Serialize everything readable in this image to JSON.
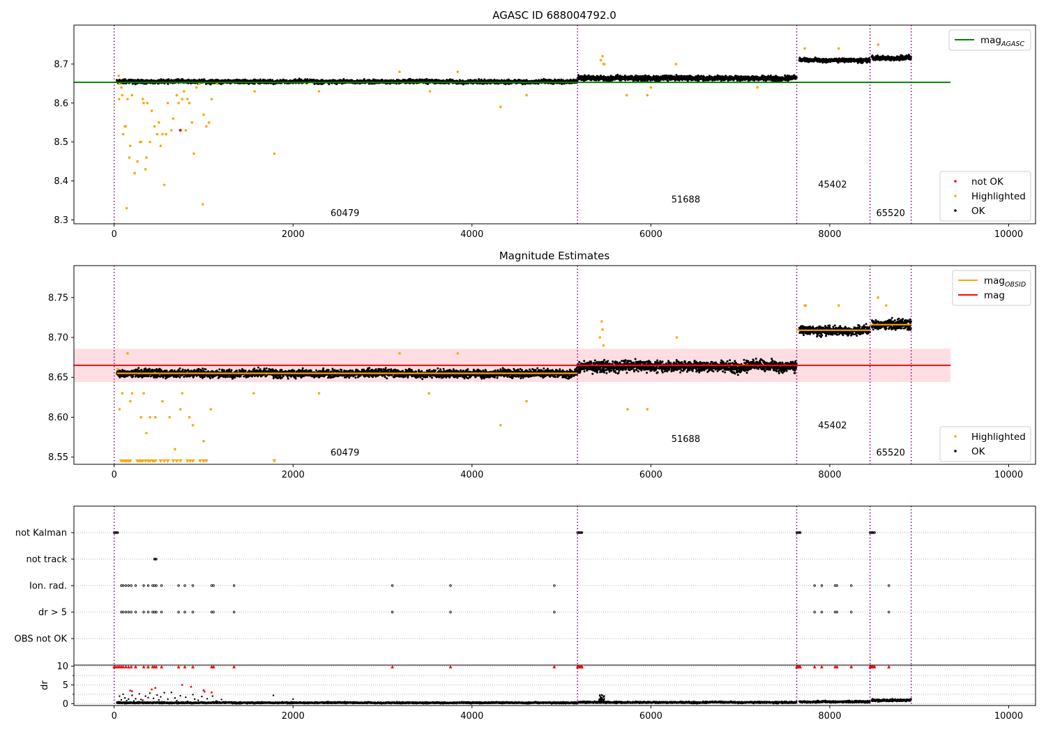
{
  "figure": {
    "colors": {
      "ok": "#000000",
      "highlighted": "#ffa500",
      "not_ok": "#ff0000",
      "agasc_line": "#008000",
      "obsid_line": "#ffa500",
      "mag_line": "#ff0000",
      "band": "#ffb6c1",
      "epoch_line": "#800080"
    }
  },
  "chart_data": [
    {
      "type": "scatter",
      "title": "AGASC ID 688004792.0",
      "xlim": [
        -450,
        10300
      ],
      "ylim": [
        8.29,
        8.8
      ],
      "xticks": [
        "0",
        "2000",
        "4000",
        "6000",
        "8000",
        "10000"
      ],
      "yticks": [
        "8.3",
        "8.4",
        "8.5",
        "8.6",
        "8.7"
      ],
      "epoch_boundaries": [
        0,
        5180,
        7630,
        8450,
        8910
      ],
      "obsid_labels": [
        {
          "text": "60479",
          "x": 2580,
          "y": 8.31
        },
        {
          "text": "51688",
          "x": 6390,
          "y": 8.345
        },
        {
          "text": "45402",
          "x": 8030,
          "y": 8.383
        },
        {
          "text": "65520",
          "x": 8680,
          "y": 8.31
        }
      ],
      "reference_line": {
        "name": "mag_AGASC",
        "y": 8.653,
        "x": [
          -450,
          9350
        ]
      },
      "segments": [
        {
          "x0": 30,
          "x1": 5180,
          "base": 8.655,
          "spread": 0.008
        },
        {
          "x0": 5180,
          "x1": 7630,
          "base": 8.664,
          "spread": 0.01
        },
        {
          "x0": 7660,
          "x1": 8450,
          "base": 8.71,
          "spread": 0.008
        },
        {
          "x0": 8470,
          "x1": 8910,
          "base": 8.716,
          "spread": 0.009
        }
      ],
      "highlighted_points": [
        [
          50,
          8.67
        ],
        [
          55,
          8.61
        ],
        [
          60,
          8.65
        ],
        [
          80,
          8.64
        ],
        [
          90,
          8.62
        ],
        [
          100,
          8.52
        ],
        [
          120,
          8.54
        ],
        [
          130,
          8.54
        ],
        [
          140,
          8.33
        ],
        [
          150,
          8.61
        ],
        [
          170,
          8.46
        ],
        [
          180,
          8.49
        ],
        [
          200,
          8.62
        ],
        [
          230,
          8.42
        ],
        [
          260,
          8.45
        ],
        [
          290,
          8.5
        ],
        [
          300,
          8.5
        ],
        [
          320,
          8.61
        ],
        [
          330,
          8.6
        ],
        [
          350,
          8.43
        ],
        [
          360,
          8.46
        ],
        [
          370,
          8.6
        ],
        [
          400,
          8.5
        ],
        [
          420,
          8.58
        ],
        [
          450,
          8.54
        ],
        [
          480,
          8.52
        ],
        [
          500,
          8.55
        ],
        [
          520,
          8.49
        ],
        [
          540,
          8.52
        ],
        [
          560,
          8.39
        ],
        [
          580,
          8.52
        ],
        [
          600,
          8.6
        ],
        [
          640,
          8.53
        ],
        [
          660,
          8.56
        ],
        [
          700,
          8.62
        ],
        [
          720,
          8.6
        ],
        [
          760,
          8.61
        ],
        [
          780,
          8.63
        ],
        [
          800,
          8.53
        ],
        [
          820,
          8.61
        ],
        [
          840,
          8.6
        ],
        [
          870,
          8.55
        ],
        [
          890,
          8.47
        ],
        [
          920,
          8.64
        ],
        [
          950,
          8.65
        ],
        [
          990,
          8.34
        ],
        [
          1000,
          8.57
        ],
        [
          1030,
          8.54
        ],
        [
          1060,
          8.55
        ],
        [
          1090,
          8.61
        ],
        [
          1150,
          8.65
        ],
        [
          1570,
          8.63
        ],
        [
          1790,
          8.47
        ],
        [
          2290,
          8.63
        ],
        [
          3190,
          8.68
        ],
        [
          3530,
          8.63
        ],
        [
          3840,
          8.68
        ],
        [
          4320,
          8.59
        ],
        [
          4610,
          8.62
        ],
        [
          5440,
          8.71
        ],
        [
          5460,
          8.72
        ],
        [
          5470,
          8.7
        ],
        [
          5480,
          8.7
        ],
        [
          5730,
          8.62
        ],
        [
          5960,
          8.62
        ],
        [
          6000,
          8.64
        ],
        [
          6280,
          8.7
        ],
        [
          7190,
          8.64
        ],
        [
          7720,
          8.74
        ],
        [
          8100,
          8.74
        ],
        [
          8540,
          8.75
        ]
      ],
      "not_ok_points": [
        [
          740,
          8.53
        ]
      ],
      "legend": [
        {
          "kind": "line",
          "label": "mag",
          "sub": "AGASC",
          "color": "#008000"
        },
        {
          "kind": "point",
          "label": "not OK",
          "color": "#ff0000"
        },
        {
          "kind": "point",
          "label": "Highlighted",
          "color": "#ffa500"
        },
        {
          "kind": "point",
          "label": "OK",
          "color": "#000000"
        }
      ]
    },
    {
      "type": "scatter",
      "title": "Magnitude Estimates",
      "xlim": [
        -450,
        10300
      ],
      "ylim": [
        8.541,
        8.79
      ],
      "xticks": [
        "0",
        "2000",
        "4000",
        "6000",
        "8000",
        "10000"
      ],
      "yticks": [
        "8.55",
        "8.60",
        "8.65",
        "8.70",
        "8.75"
      ],
      "epoch_boundaries": [
        0,
        5180,
        7630,
        8450,
        8910
      ],
      "obsid_labels": [
        {
          "text": "60479",
          "x": 2580,
          "y": 8.552
        },
        {
          "text": "51688",
          "x": 6390,
          "y": 8.569
        },
        {
          "text": "45402",
          "x": 8030,
          "y": 8.586
        },
        {
          "text": "65520",
          "x": 8680,
          "y": 8.552
        }
      ],
      "mag_line": {
        "name": "mag",
        "y": 8.665,
        "x": [
          -450,
          9350
        ]
      },
      "band": {
        "y0": 8.644,
        "y1": 8.686,
        "x": [
          -450,
          9350
        ]
      },
      "obsid_lines": [
        {
          "x0": 30,
          "x1": 5180,
          "y": 8.655
        },
        {
          "x0": 5180,
          "x1": 7630,
          "y": 8.665
        },
        {
          "x0": 7630,
          "x1": 8450,
          "y": 8.709
        },
        {
          "x0": 8450,
          "x1": 8910,
          "y": 8.716
        }
      ],
      "segments": [
        {
          "x0": 30,
          "x1": 5180,
          "base": 8.655,
          "spread": 0.008
        },
        {
          "x0": 5180,
          "x1": 7630,
          "base": 8.664,
          "spread": 0.011
        },
        {
          "x0": 7660,
          "x1": 8450,
          "base": 8.709,
          "spread": 0.009
        },
        {
          "x0": 8470,
          "x1": 8910,
          "base": 8.716,
          "spread": 0.01
        }
      ],
      "highlighted_points": [
        [
          40,
          8.66
        ],
        [
          60,
          8.61
        ],
        [
          90,
          8.63
        ],
        [
          150,
          8.68
        ],
        [
          180,
          8.62
        ],
        [
          200,
          8.63
        ],
        [
          300,
          8.6
        ],
        [
          330,
          8.63
        ],
        [
          360,
          8.58
        ],
        [
          400,
          8.6
        ],
        [
          460,
          8.6
        ],
        [
          540,
          8.62
        ],
        [
          620,
          8.6
        ],
        [
          680,
          8.56
        ],
        [
          740,
          8.61
        ],
        [
          760,
          8.63
        ],
        [
          840,
          8.6
        ],
        [
          880,
          8.59
        ],
        [
          1000,
          8.57
        ],
        [
          1080,
          8.61
        ],
        [
          1560,
          8.63
        ],
        [
          2290,
          8.63
        ],
        [
          3190,
          8.68
        ],
        [
          3520,
          8.63
        ],
        [
          3840,
          8.68
        ],
        [
          4320,
          8.59
        ],
        [
          4610,
          8.62
        ],
        [
          5430,
          8.7
        ],
        [
          5450,
          8.72
        ],
        [
          5460,
          8.71
        ],
        [
          5470,
          8.69
        ],
        [
          5740,
          8.61
        ],
        [
          5960,
          8.61
        ],
        [
          6290,
          8.7
        ],
        [
          7720,
          8.74
        ],
        [
          7730,
          8.74
        ],
        [
          8100,
          8.74
        ],
        [
          8540,
          8.75
        ],
        [
          8630,
          8.74
        ]
      ],
      "clipped_x": [
        80,
        100,
        120,
        140,
        160,
        180,
        260,
        280,
        300,
        320,
        350,
        380,
        400,
        430,
        440,
        460,
        520,
        560,
        600,
        660,
        700,
        740,
        820,
        850,
        880,
        960,
        1000,
        1030,
        1790
      ],
      "legend": [
        {
          "kind": "line",
          "label": "mag",
          "sub": "OBSID",
          "color": "#ffa500"
        },
        {
          "kind": "line",
          "label": "mag",
          "sub": "",
          "color": "#ff0000"
        },
        {
          "kind": "point",
          "label": "Highlighted",
          "color": "#ffa500"
        },
        {
          "kind": "point",
          "label": "OK",
          "color": "#000000"
        }
      ]
    },
    {
      "type": "scatter",
      "title": "",
      "xlim": [
        -450,
        10300
      ],
      "categories": [
        "not Kalman",
        "not track",
        "Ion. rad.",
        "dr > 5",
        "OBS not OK"
      ],
      "flags": {
        "not Kalman": [
          0,
          10,
          20,
          30,
          40,
          5180,
          5190,
          5200,
          5210,
          5220,
          5230,
          7630,
          7640,
          7650,
          7660,
          7670,
          8450,
          8460,
          8470,
          8480,
          8490,
          8500
        ],
        "not track": [
          450,
          460,
          470
        ],
        "Ion. rad.": [
          80,
          100,
          130,
          160,
          190,
          240,
          330,
          380,
          430,
          450,
          470,
          530,
          720,
          790,
          880,
          1090,
          1110,
          1340,
          3110,
          3760,
          4920,
          7830,
          7910,
          8060,
          8080,
          8240,
          8660
        ],
        "dr > 5": [
          80,
          100,
          130,
          160,
          190,
          240,
          330,
          380,
          430,
          450,
          470,
          530,
          720,
          790,
          880,
          1090,
          1110,
          1340,
          3110,
          3760,
          4920,
          7830,
          7910,
          8060,
          8080,
          8240,
          8660
        ],
        "OBS not OK": []
      }
    },
    {
      "type": "scatter",
      "title": "",
      "xlim": [
        -450,
        10300
      ],
      "ylim": [
        -0.5,
        10.3
      ],
      "ylabel": "dr",
      "xticks": [
        "0",
        "2000",
        "4000",
        "6000",
        "8000",
        "10000"
      ],
      "yticks": [
        "0",
        "5",
        "10"
      ],
      "clipped_x": [
        0,
        20,
        40,
        60,
        80,
        100,
        130,
        160,
        190,
        240,
        330,
        380,
        430,
        450,
        470,
        530,
        720,
        790,
        880,
        1090,
        1110,
        1340,
        3110,
        3760,
        4920,
        5180,
        5190,
        5200,
        5210,
        5220,
        5230,
        7630,
        7640,
        7650,
        7660,
        7670,
        7830,
        7910,
        8060,
        8080,
        8240,
        8450,
        8460,
        8470,
        8480,
        8490,
        8500,
        8660
      ],
      "red_points": [
        [
          180,
          3.5
        ],
        [
          200,
          3.3
        ],
        [
          420,
          3.8
        ],
        [
          460,
          4.2
        ],
        [
          760,
          5.0
        ],
        [
          860,
          4.5
        ],
        [
          1000,
          3.6
        ],
        [
          1010,
          3.2
        ],
        [
          1090,
          3.0
        ]
      ],
      "scatter_points": [
        [
          60,
          2.0
        ],
        [
          80,
          1.0
        ],
        [
          100,
          2.5
        ],
        [
          120,
          1.5
        ],
        [
          140,
          0.8
        ],
        [
          160,
          1.2
        ],
        [
          200,
          2.2
        ],
        [
          220,
          0.7
        ],
        [
          240,
          1.3
        ],
        [
          280,
          2.6
        ],
        [
          300,
          1.1
        ],
        [
          320,
          0.9
        ],
        [
          350,
          2.0
        ],
        [
          380,
          1.6
        ],
        [
          400,
          2.8
        ],
        [
          440,
          1.4
        ],
        [
          480,
          2.3
        ],
        [
          500,
          1.0
        ],
        [
          520,
          1.8
        ],
        [
          560,
          2.9
        ],
        [
          600,
          1.2
        ],
        [
          640,
          3.0
        ],
        [
          680,
          1.5
        ],
        [
          700,
          0.8
        ],
        [
          740,
          2.1
        ],
        [
          800,
          1.7
        ],
        [
          820,
          0.6
        ],
        [
          880,
          2.4
        ],
        [
          900,
          1.2
        ],
        [
          940,
          0.9
        ],
        [
          980,
          1.9
        ],
        [
          1040,
          1.3
        ],
        [
          1100,
          2.0
        ],
        [
          1140,
          0.7
        ],
        [
          1200,
          1.1
        ],
        [
          1780,
          2.2
        ],
        [
          2000,
          1.2
        ]
      ],
      "segments": [
        {
          "x0": 30,
          "x1": 5180,
          "base": 0.25,
          "spread": 0.3
        },
        {
          "x0": 5180,
          "x1": 7630,
          "base": 0.35,
          "spread": 0.35
        },
        {
          "x0": 7660,
          "x1": 8450,
          "base": 0.5,
          "spread": 0.4
        },
        {
          "x0": 8470,
          "x1": 8910,
          "base": 0.9,
          "spread": 0.5
        }
      ],
      "bumps": [
        {
          "x0": 5420,
          "x1": 5480,
          "y0": 0.6,
          "y1": 2.4
        }
      ]
    }
  ]
}
